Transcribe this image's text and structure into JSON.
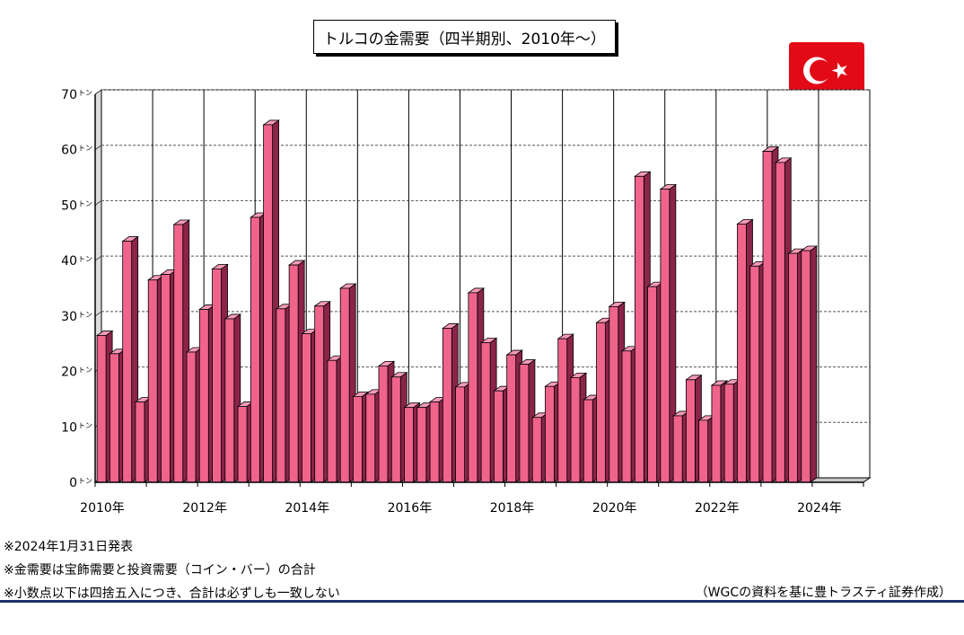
{
  "chart_data": {
    "type": "bar",
    "title": "トルコの金需要（四半期別、2010年～）",
    "y_unit": "トン",
    "ylim": [
      0,
      70
    ],
    "yticks": [
      0,
      10,
      20,
      30,
      40,
      50,
      60,
      70
    ],
    "x_tick_labels": [
      "2010年",
      "2012年",
      "2014年",
      "2016年",
      "2018年",
      "2020年",
      "2022年",
      "2024年"
    ],
    "grid": true,
    "bar_color": "#f0648c",
    "categories": [
      "2010Q1",
      "2010Q2",
      "2010Q3",
      "2010Q4",
      "2011Q1",
      "2011Q2",
      "2011Q3",
      "2011Q4",
      "2012Q1",
      "2012Q2",
      "2012Q3",
      "2012Q4",
      "2013Q1",
      "2013Q2",
      "2013Q3",
      "2013Q4",
      "2014Q1",
      "2014Q2",
      "2014Q3",
      "2014Q4",
      "2015Q1",
      "2015Q2",
      "2015Q3",
      "2015Q4",
      "2016Q1",
      "2016Q2",
      "2016Q3",
      "2016Q4",
      "2017Q1",
      "2017Q2",
      "2017Q3",
      "2017Q4",
      "2018Q1",
      "2018Q2",
      "2018Q3",
      "2018Q4",
      "2019Q1",
      "2019Q2",
      "2019Q3",
      "2019Q4",
      "2020Q1",
      "2020Q2",
      "2020Q3",
      "2020Q4",
      "2021Q1",
      "2021Q2",
      "2021Q3",
      "2021Q4",
      "2022Q1",
      "2022Q2",
      "2022Q3",
      "2022Q4",
      "2023Q1",
      "2023Q2",
      "2023Q3",
      "2023Q4"
    ],
    "values": [
      26.5,
      23.2,
      43.5,
      14.5,
      36.5,
      37.5,
      46.5,
      23.5,
      31.2,
      38.5,
      29.5,
      13.7,
      47.8,
      64.5,
      31.3,
      39.2,
      26.8,
      31.8,
      22.0,
      35.0,
      15.5,
      15.9,
      21.0,
      19.0,
      13.5,
      13.5,
      14.5,
      27.8,
      17.2,
      34.2,
      25.2,
      16.5,
      23.0,
      21.3,
      11.7,
      17.3,
      25.9,
      18.9,
      14.9,
      28.8,
      31.7,
      23.7,
      55.2,
      35.3,
      52.9,
      12.0,
      18.5,
      11.2,
      17.5,
      17.7,
      46.6,
      39.0,
      59.7,
      57.7,
      41.3,
      41.8
    ]
  },
  "notes": [
    "※2024年1月31日発表",
    "※金需要は宝飾需要と投資需要（コイン・バー）の合計",
    "※小数点以下は四捨五入につき、合計は必ずしも一致しない"
  ],
  "source": "（WGCの資料を基に豊トラスティ証券作成）",
  "flag": {
    "country": "Turkey",
    "icon": "turkey-flag-icon",
    "color": "#e30a17"
  }
}
